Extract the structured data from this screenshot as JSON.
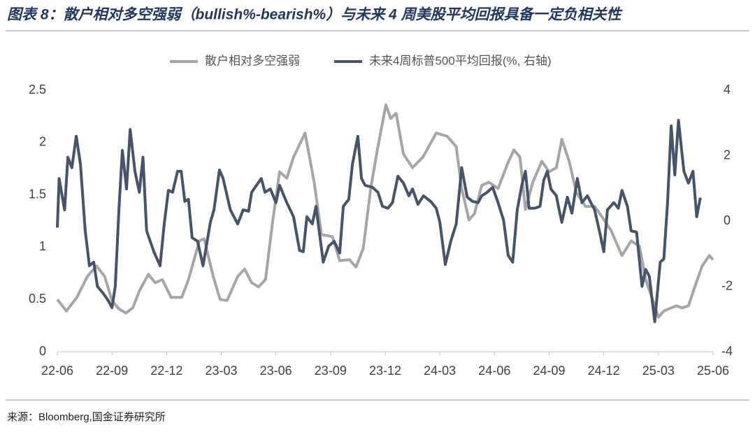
{
  "chart_data": {
    "type": "line",
    "title": "图表 8：散户相对多空强弱（bullish%-bearish%）与未来 4 周美股平均回报具备一定负相关性",
    "source": "来源：Bloomberg,国金证券研究所",
    "xlim": [
      0,
      36
    ],
    "xticks": [
      {
        "value": 0,
        "label": "22-06"
      },
      {
        "value": 3,
        "label": "22-09"
      },
      {
        "value": 6,
        "label": "22-12"
      },
      {
        "value": 9,
        "label": "23-03"
      },
      {
        "value": 12,
        "label": "23-06"
      },
      {
        "value": 15,
        "label": "23-09"
      },
      {
        "value": 18,
        "label": "23-12"
      },
      {
        "value": 21,
        "label": "24-03"
      },
      {
        "value": 24,
        "label": "24-06"
      },
      {
        "value": 27,
        "label": "24-09"
      },
      {
        "value": 30,
        "label": "24-12"
      },
      {
        "value": 33,
        "label": "25-03"
      },
      {
        "value": 36,
        "label": "25-06"
      }
    ],
    "ylim": [
      0,
      2.5
    ],
    "yticks": [
      0,
      0.5,
      1,
      1.5,
      2,
      2.5
    ],
    "y2lim": [
      -4,
      4
    ],
    "y2ticks": [
      -4,
      -2,
      0,
      2,
      4
    ],
    "series": [
      {
        "name": "散户相对多空强弱",
        "color": "#a6a6a6",
        "axis": "y",
        "x": [
          0,
          0.5,
          1.07,
          1.65,
          2.15,
          2.6,
          3.0,
          3.38,
          3.76,
          4.14,
          4.53,
          5.0,
          5.37,
          5.76,
          6.25,
          6.83,
          7.2,
          7.8,
          8.06,
          8.56,
          8.94,
          9.32,
          9.9,
          10.28,
          10.67,
          11.05,
          11.43,
          11.8,
          12.2,
          12.6,
          12.97,
          13.6,
          14.1,
          14.5,
          15.1,
          15.5,
          16.04,
          16.4,
          16.8,
          17.2,
          17.57,
          18.04,
          18.3,
          18.6,
          19.0,
          19.5,
          20.07,
          20.8,
          21.4,
          21.9,
          22.2,
          22.6,
          22.9,
          23.3,
          23.7,
          24.2,
          24.7,
          25.06,
          25.4,
          25.7,
          26.1,
          26.6,
          27.0,
          27.4,
          27.7,
          28.1,
          28.5,
          29.0,
          29.5,
          29.9,
          30.4,
          31.0,
          31.5,
          31.96,
          32.3,
          32.7,
          33.0,
          33.3,
          33.7,
          34.0,
          34.3,
          34.65,
          35.0,
          35.4,
          35.8,
          36.0
        ],
        "values": [
          0.5,
          0.39,
          0.52,
          0.72,
          0.82,
          0.72,
          0.49,
          0.41,
          0.37,
          0.42,
          0.59,
          0.74,
          0.66,
          0.69,
          0.52,
          0.52,
          0.69,
          1.06,
          1.08,
          0.72,
          0.5,
          0.49,
          0.72,
          0.79,
          0.66,
          0.62,
          0.69,
          1.22,
          1.72,
          1.66,
          1.86,
          2.09,
          1.62,
          1.12,
          1.1,
          0.87,
          0.88,
          0.81,
          0.99,
          1.56,
          1.93,
          2.36,
          2.23,
          2.28,
          1.89,
          1.76,
          1.86,
          2.09,
          2.06,
          1.96,
          1.56,
          1.26,
          1.32,
          1.59,
          1.62,
          1.56,
          1.79,
          1.93,
          1.86,
          1.36,
          1.62,
          1.82,
          1.72,
          1.76,
          2.03,
          1.82,
          1.52,
          1.39,
          1.39,
          1.29,
          1.16,
          0.92,
          1.06,
          1.01,
          0.69,
          0.49,
          0.33,
          0.39,
          0.42,
          0.44,
          0.42,
          0.44,
          0.62,
          0.82,
          0.92,
          0.88
        ]
      },
      {
        "name": "未来4周标普500平均回报(%, 右轴)",
        "color": "#44546a",
        "axis": "y2",
        "x": [
          0,
          0.1,
          0.4,
          0.58,
          0.8,
          1.04,
          1.27,
          1.53,
          1.76,
          2.0,
          2.2,
          2.53,
          2.8,
          3.0,
          3.18,
          3.38,
          3.57,
          3.8,
          4.0,
          4.26,
          4.5,
          4.7,
          4.9,
          5.3,
          5.64,
          5.87,
          6.1,
          6.33,
          6.6,
          6.8,
          7.0,
          7.2,
          7.4,
          7.7,
          8.0,
          8.4,
          8.6,
          8.9,
          9.1,
          9.5,
          9.9,
          10.2,
          10.5,
          10.67,
          11.2,
          11.4,
          11.7,
          12.0,
          12.2,
          12.6,
          12.97,
          13.3,
          13.5,
          13.7,
          14.0,
          14.2,
          14.6,
          14.9,
          15.2,
          15.5,
          15.7,
          16.0,
          16.2,
          16.5,
          16.7,
          16.9,
          17.3,
          17.6,
          17.85,
          18.15,
          18.4,
          18.7,
          19.0,
          19.3,
          19.5,
          19.8,
          20.1,
          20.5,
          20.8,
          21.0,
          21.3,
          21.6,
          21.9,
          22.2,
          22.5,
          22.8,
          23.1,
          23.3,
          23.6,
          23.9,
          24.2,
          24.5,
          24.75,
          25.0,
          25.25,
          25.5,
          25.7,
          25.9,
          26.2,
          26.5,
          26.7,
          26.9,
          27.1,
          27.4,
          27.55,
          27.7,
          28.0,
          28.25,
          28.55,
          28.8,
          29.1,
          29.5,
          29.8,
          30.0,
          30.2,
          30.55,
          30.8,
          31.0,
          31.3,
          31.5,
          31.8,
          32.1,
          32.3,
          32.5,
          32.8,
          33.1,
          33.3,
          33.5,
          33.7,
          33.9,
          34.1,
          34.4,
          34.65,
          34.9,
          35.1,
          35.3
        ],
        "values": [
          -0.2,
          1.3,
          0.34,
          1.95,
          1.63,
          2.59,
          1.73,
          -0.3,
          -1.37,
          -1.26,
          -2.0,
          -2.22,
          -2.44,
          -2.65,
          -2.0,
          0.34,
          2.16,
          0.98,
          2.8,
          1.52,
          0.88,
          1.95,
          -0.3,
          -0.94,
          -1.37,
          -0.09,
          0.94,
          0.88,
          1.52,
          1.52,
          0.6,
          0.66,
          -0.51,
          -0.62,
          -1.37,
          -0.04,
          0.34,
          1.56,
          1.3,
          0.34,
          -0.09,
          0.34,
          0.3,
          0.88,
          1.3,
          0.88,
          0.98,
          0.56,
          1.09,
          0.56,
          0.13,
          -0.9,
          -0.94,
          0.13,
          -0.09,
          0.45,
          -1.26,
          -0.77,
          -0.62,
          -0.98,
          0.45,
          0.66,
          1.73,
          2.59,
          1.3,
          1.09,
          1.03,
          0.88,
          0.45,
          0.39,
          0.56,
          1.37,
          1.16,
          0.77,
          0.98,
          0.51,
          0.77,
          0.6,
          0.39,
          -0.04,
          -1.33,
          -0.62,
          -0.09,
          1.63,
          0.73,
          0.6,
          0.56,
          0.77,
          0.88,
          1.03,
          0.56,
          0.02,
          -1.05,
          -1.26,
          0.34,
          1.09,
          1.52,
          0.39,
          0.39,
          0.45,
          1.24,
          1.52,
          0.98,
          0.77,
          0.34,
          -0.04,
          0.73,
          0.24,
          1.3,
          0.56,
          0.77,
          0.34,
          -0.41,
          -0.94,
          0.34,
          0.56,
          0.39,
          0.94,
          0.45,
          -0.3,
          -0.34,
          -2.0,
          -1.48,
          -1.69,
          -3.08,
          -1.26,
          -1.16,
          0.56,
          2.91,
          1.41,
          3.08,
          1.52,
          1.16,
          1.52,
          0.13,
          0.71
        ]
      }
    ]
  }
}
